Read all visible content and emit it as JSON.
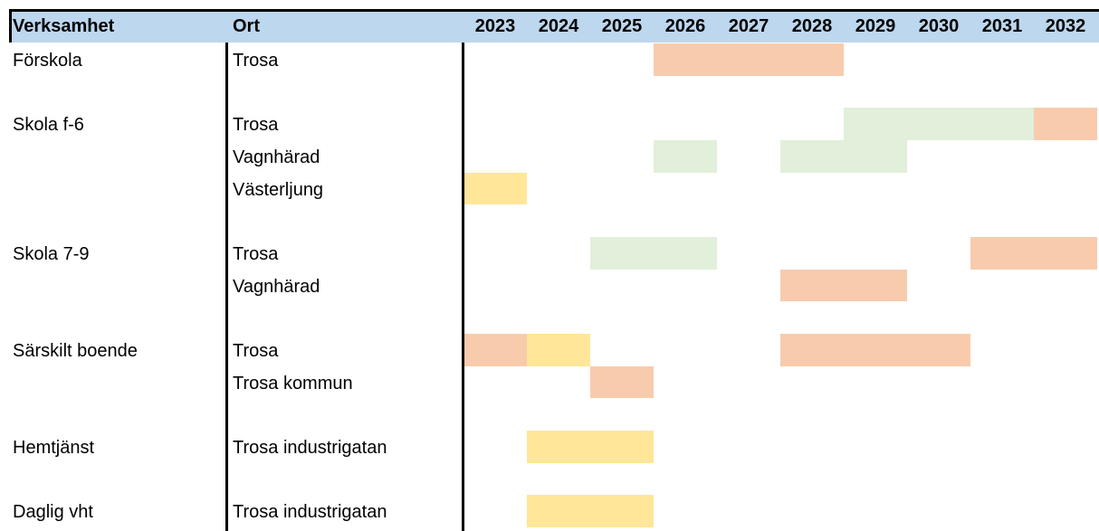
{
  "header": {
    "verksamhet": "Verksamhet",
    "ort": "Ort",
    "years": [
      "2023",
      "2024",
      "2025",
      "2026",
      "2027",
      "2028",
      "2029",
      "2030",
      "2031",
      "2032"
    ]
  },
  "groups": [
    {
      "verksamhet": "Förskola",
      "places": [
        {
          "ort": "Trosa",
          "cells": [
            null,
            null,
            null,
            "#f8cbad",
            "#f8cbad",
            "#f8cbad",
            null,
            null,
            null,
            null
          ]
        }
      ]
    },
    {
      "verksamhet": "Skola f-6",
      "places": [
        {
          "ort": "Trosa",
          "cells": [
            null,
            null,
            null,
            null,
            null,
            null,
            "#e2efda",
            "#e2efda",
            "#e2efda",
            "#f8cbad"
          ]
        },
        {
          "ort": "Vagnhärad",
          "cells": [
            null,
            null,
            null,
            "#e2efda",
            null,
            "#e2efda",
            "#e2efda",
            null,
            null,
            null
          ]
        },
        {
          "ort": "Västerljung",
          "cells": [
            "#ffe699",
            null,
            null,
            null,
            null,
            null,
            null,
            null,
            null,
            null
          ]
        }
      ]
    },
    {
      "verksamhet": "Skola 7-9",
      "places": [
        {
          "ort": "Trosa",
          "cells": [
            null,
            null,
            "#e2efda",
            "#e2efda",
            null,
            null,
            null,
            null,
            "#f8cbad",
            "#f8cbad"
          ]
        },
        {
          "ort": "Vagnhärad",
          "cells": [
            null,
            null,
            null,
            null,
            null,
            "#f8cbad",
            "#f8cbad",
            null,
            null,
            null
          ]
        }
      ]
    },
    {
      "verksamhet": "Särskilt boende",
      "places": [
        {
          "ort": "Trosa",
          "cells": [
            "#f8cbad",
            "#ffe699",
            null,
            null,
            null,
            "#f8cbad",
            "#f8cbad",
            "#f8cbad",
            null,
            null
          ]
        },
        {
          "ort": "Trosa kommun",
          "cells": [
            null,
            null,
            "#f8cbad",
            null,
            null,
            null,
            null,
            null,
            null,
            null
          ]
        }
      ]
    },
    {
      "verksamhet": "Hemtjänst",
      "places": [
        {
          "ort": "Trosa industrigatan",
          "cells": [
            null,
            "#ffe699",
            "#ffe699",
            null,
            null,
            null,
            null,
            null,
            null,
            null
          ]
        }
      ]
    },
    {
      "verksamhet": "Daglig vht",
      "places": [
        {
          "ort": "Trosa industrigatan",
          "cells": [
            null,
            "#ffe699",
            "#ffe699",
            null,
            null,
            null,
            null,
            null,
            null,
            null
          ]
        }
      ]
    }
  ]
}
